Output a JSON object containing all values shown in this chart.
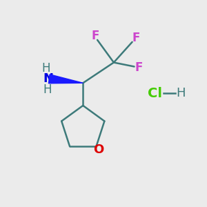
{
  "bg_color": "#ebebeb",
  "bond_color": "#3d7a7a",
  "N_color": "#0000e0",
  "H_color": "#3d7a7a",
  "O_color": "#dd0000",
  "F_color": "#cc44cc",
  "Cl_color": "#44cc00",
  "figsize": [
    3.0,
    3.0
  ],
  "dpi": 100,
  "xlim": [
    0,
    10
  ],
  "ylim": [
    0,
    10
  ]
}
